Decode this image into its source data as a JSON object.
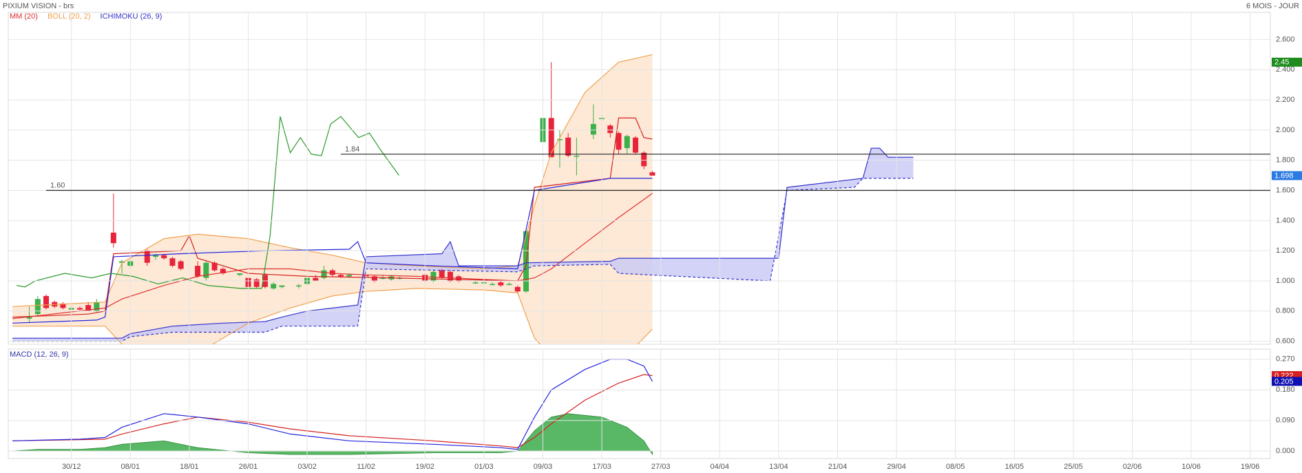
{
  "chart_data": [
    {
      "type": "candlestick",
      "title": "PIXIUM VISION - brs",
      "subtitle": "6 MOIS - JOUR",
      "xlim": [
        -0.5,
        149.4
      ],
      "ylim": [
        0.58,
        2.78
      ],
      "yticks": [
        {
          "value": 0.6,
          "label": "0.600"
        },
        {
          "value": 0.8,
          "label": "0.800"
        },
        {
          "value": 1.0,
          "label": "1.000"
        },
        {
          "value": 1.2,
          "label": "1.200"
        },
        {
          "value": 1.4,
          "label": "1.400"
        },
        {
          "value": 1.6,
          "label": "1.600"
        },
        {
          "value": 1.8,
          "label": "1.800"
        },
        {
          "value": 2.0,
          "label": "2.000"
        },
        {
          "value": 2.2,
          "label": "2.200"
        },
        {
          "value": 2.4,
          "label": "2.400"
        },
        {
          "value": 2.6,
          "label": "2.600"
        }
      ],
      "grid": true,
      "up_color": "#3cb04a",
      "down_color": "#e8243a",
      "x": [
        2,
        3,
        4,
        5,
        6,
        7,
        8,
        9,
        10,
        12,
        13,
        14,
        16,
        17,
        18,
        19,
        20,
        22,
        23,
        24,
        25,
        27,
        28,
        29,
        30,
        31,
        32,
        34,
        35,
        36,
        37,
        38,
        39,
        40,
        42,
        43,
        44,
        45,
        46,
        49,
        50,
        51,
        52,
        53,
        55,
        56,
        57,
        58,
        59,
        60,
        61,
        63,
        64,
        65,
        66,
        67,
        69,
        70,
        71,
        72,
        73,
        74,
        75,
        76
      ],
      "open": [
        0.75,
        0.78,
        0.9,
        0.86,
        0.85,
        0.81,
        0.82,
        0.84,
        0.8,
        1.32,
        1.12,
        1.1,
        1.2,
        1.16,
        1.17,
        1.15,
        1.13,
        1.1,
        1.02,
        1.12,
        1.08,
        1.04,
        1.02,
        1.01,
        1.04,
        0.95,
        0.96,
        0.97,
        0.98,
        1.02,
        1.02,
        1.07,
        1.04,
        1.03,
        1.04,
        1.03,
        1.02,
        1.01,
        1.02,
        1.04,
        1.0,
        1.07,
        1.06,
        1.03,
        0.99,
        0.99,
        0.98,
        0.99,
        0.98,
        0.96,
        0.93,
        1.92,
        2.08,
        1.94,
        1.95,
        1.83,
        1.97,
        2.08,
        2.03,
        1.98,
        1.88,
        1.95,
        1.85,
        1.72
      ],
      "high": [
        0.83,
        0.9,
        0.91,
        0.87,
        0.86,
        0.83,
        0.83,
        0.86,
        0.88,
        1.58,
        1.14,
        1.16,
        1.21,
        1.18,
        1.18,
        1.16,
        1.14,
        1.13,
        1.13,
        1.13,
        1.09,
        1.05,
        1.03,
        1.02,
        1.05,
        0.99,
        0.97,
        0.98,
        1.03,
        1.04,
        1.1,
        1.08,
        1.05,
        1.05,
        1.05,
        1.04,
        1.04,
        1.04,
        1.03,
        1.05,
        1.07,
        1.08,
        1.07,
        1.04,
        1.0,
        1.0,
        0.99,
        1.0,
        0.99,
        0.97,
        1.33,
        2.37,
        2.45,
        2.0,
        1.98,
        1.95,
        2.17,
        2.1,
        2.04,
        1.99,
        1.97,
        1.96,
        1.86,
        1.73
      ],
      "low": [
        0.72,
        0.77,
        0.81,
        0.82,
        0.81,
        0.8,
        0.8,
        0.8,
        0.79,
        1.22,
        1.05,
        1.08,
        1.1,
        1.14,
        1.14,
        1.09,
        1.07,
        1.02,
        1.0,
        1.06,
        1.04,
        1.03,
        0.95,
        0.95,
        0.95,
        0.94,
        0.95,
        0.95,
        0.97,
        1.0,
        1.01,
        1.03,
        1.02,
        1.02,
        1.02,
        0.99,
        1.01,
        1.0,
        1.01,
        0.99,
        0.99,
        1.01,
        0.99,
        0.99,
        0.98,
        0.98,
        0.97,
        0.96,
        0.97,
        0.92,
        0.92,
        1.82,
        1.82,
        1.75,
        1.82,
        1.7,
        1.94,
        2.06,
        1.95,
        1.84,
        1.84,
        1.84,
        1.74,
        1.7
      ],
      "close": [
        0.76,
        0.88,
        0.82,
        0.83,
        0.82,
        0.82,
        0.81,
        0.8,
        0.86,
        1.25,
        1.13,
        1.13,
        1.12,
        1.17,
        1.15,
        1.1,
        1.08,
        1.03,
        1.12,
        1.07,
        1.05,
        1.05,
        0.96,
        0.96,
        0.96,
        0.98,
        0.97,
        0.97,
        1.02,
        1.0,
        1.07,
        1.04,
        1.03,
        1.04,
        1.03,
        1.0,
        1.02,
        1.03,
        1.02,
        1.0,
        1.06,
        1.02,
        1.0,
        1.0,
        0.99,
        0.99,
        0.98,
        0.97,
        0.98,
        0.93,
        1.33,
        2.08,
        1.82,
        1.94,
        1.83,
        1.83,
        2.04,
        2.08,
        1.98,
        1.87,
        1.96,
        1.85,
        1.76,
        1.698
      ],
      "overlays": [
        {
          "name": "MM (20)",
          "color": "#e03030",
          "lines": [
            {
              "color": "#e03030",
              "x": [
                0,
                11,
                13,
                18,
                22,
                28,
                33,
                38,
                42,
                48,
                56,
                60,
                62,
                64,
                68,
                72,
                76
              ],
              "values": [
                0.75,
                0.82,
                0.88,
                0.97,
                1.03,
                1.08,
                1.08,
                1.05,
                1.04,
                1.03,
                1.01,
                1.0,
                1.02,
                1.08,
                1.25,
                1.42,
                1.58
              ]
            }
          ]
        },
        {
          "name": "BOLL (20, 2)",
          "color": "#f0a050",
          "fill": "#fde3cc",
          "fill_between": [
            0,
            1
          ],
          "lines": [
            {
              "color": "#f0a050",
              "x": [
                0,
                11,
                13,
                18,
                22,
                28,
                33,
                38,
                42,
                48,
                56,
                60,
                62,
                64,
                68,
                72,
                76
              ],
              "values": [
                0.83,
                0.86,
                1.12,
                1.28,
                1.31,
                1.28,
                1.22,
                1.17,
                1.12,
                1.1,
                1.08,
                1.1,
                1.5,
                1.85,
                2.25,
                2.45,
                2.5
              ]
            },
            {
              "color": "#f0a050",
              "x": [
                0,
                11,
                13,
                18,
                22,
                28,
                33,
                38,
                42,
                48,
                56,
                60,
                62,
                64,
                68,
                72,
                76
              ],
              "values": [
                0.7,
                0.7,
                0.58,
                0.5,
                0.52,
                0.72,
                0.82,
                0.9,
                0.93,
                0.95,
                0.94,
                0.92,
                0.62,
                0.5,
                0.45,
                0.45,
                0.68
              ]
            }
          ]
        },
        {
          "name": "ICHIMOKU (26, 9)",
          "color": "#3333cc",
          "fill": "#c8c8f5",
          "fill_between": [
            3,
            4
          ],
          "lines": [
            {
              "color": "#d42020",
              "x": [
                0,
                9,
                11,
                12,
                20,
                21,
                22,
                28,
                35,
                45,
                60,
                61,
                62,
                71,
                72,
                74,
                75,
                76
              ],
              "values": [
                0.76,
                0.78,
                0.8,
                1.18,
                1.2,
                1.3,
                1.15,
                1.05,
                1.03,
                1.02,
                1.0,
                1.1,
                1.62,
                1.68,
                2.08,
                2.08,
                1.95,
                1.94
              ]
            },
            {
              "color": "#2222dd",
              "x": [
                0,
                10,
                11,
                12,
                20,
                30,
                40,
                41,
                42,
                50,
                60,
                62,
                71,
                76
              ],
              "values": [
                0.72,
                0.74,
                0.76,
                1.16,
                1.18,
                1.2,
                1.21,
                1.26,
                1.12,
                1.1,
                1.08,
                1.6,
                1.68,
                1.68
              ]
            },
            {
              "color": "#2a9a2a",
              "x": [
                0.5,
                1.5,
                2.7,
                6.2,
                9.4,
                11.7,
                14.3,
                17.3,
                20.2,
                23.2,
                27.1,
                29.6,
                30.6,
                31.8,
                33,
                34.2,
                35.5,
                36.7,
                37.8,
                39,
                41.1,
                42.4,
                43.7,
                45.9
              ],
              "values": [
                0.97,
                0.96,
                1.0,
                1.05,
                1.02,
                1.05,
                1.03,
                0.98,
                1.02,
                0.97,
                0.95,
                0.95,
                1.3,
                2.09,
                1.85,
                1.95,
                1.84,
                1.83,
                2.04,
                2.09,
                1.95,
                1.98,
                1.87,
                1.7
              ]
            },
            {
              "color": "#3333cc",
              "x": [
                0,
                13,
                14,
                19,
                25,
                30,
                32,
                35,
                38,
                41,
                42,
                51,
                52,
                53,
                60,
                61,
                71,
                72,
                91,
                92,
                101,
                102,
                103,
                104,
                107
              ],
              "values": [
                0.62,
                0.62,
                0.65,
                0.7,
                0.72,
                0.73,
                0.76,
                0.8,
                0.82,
                0.84,
                1.16,
                1.18,
                1.26,
                1.1,
                1.1,
                1.12,
                1.13,
                1.15,
                1.15,
                1.62,
                1.68,
                1.88,
                1.88,
                1.82,
                1.82
              ]
            },
            {
              "color": "#3333cc",
              "dash": true,
              "x": [
                0,
                13,
                14,
                19,
                30,
                32,
                41,
                42,
                60,
                62,
                71,
                72,
                90,
                92,
                100,
                101,
                107
              ],
              "values": [
                0.6,
                0.6,
                0.63,
                0.66,
                0.66,
                0.7,
                0.7,
                1.08,
                1.06,
                1.1,
                1.11,
                1.05,
                1.0,
                1.6,
                1.62,
                1.68,
                1.68
              ]
            }
          ]
        }
      ],
      "hlines": [
        {
          "value": 1.84,
          "label": "1.84",
          "from": 39
        },
        {
          "value": 1.6,
          "label": "1.60",
          "from": 4
        }
      ],
      "last_values": [
        {
          "value": 2.45,
          "color": "#1e8c1e"
        },
        {
          "value": 1.698,
          "color": "#2a7ae2"
        }
      ]
    },
    {
      "type": "line",
      "title": "MACD (12, 26, 9)",
      "xlim": [
        -0.5,
        149.4
      ],
      "ylim": [
        -0.022,
        0.3
      ],
      "xticks": [
        {
          "value": 7,
          "label": "30/12"
        },
        {
          "value": 14,
          "label": "08/01"
        },
        {
          "value": 21,
          "label": "18/01"
        },
        {
          "value": 28,
          "label": "26/01"
        },
        {
          "value": 35,
          "label": "03/02"
        },
        {
          "value": 42,
          "label": "11/02"
        },
        {
          "value": 49,
          "label": "19/02"
        },
        {
          "value": 56,
          "label": "01/03"
        },
        {
          "value": 63,
          "label": "09/03"
        },
        {
          "value": 70,
          "label": "17/03"
        },
        {
          "value": 77,
          "label": "27/03"
        },
        {
          "value": 84,
          "label": "04/04"
        },
        {
          "value": 91,
          "label": "13/04"
        },
        {
          "value": 98,
          "label": "21/04"
        },
        {
          "value": 105,
          "label": "29/04"
        },
        {
          "value": 112,
          "label": "08/05"
        },
        {
          "value": 119,
          "label": "16/05"
        },
        {
          "value": 126,
          "label": "25/05"
        },
        {
          "value": 133,
          "label": "02/06"
        },
        {
          "value": 140,
          "label": "10/06"
        },
        {
          "value": 147,
          "label": "19/06"
        }
      ],
      "yticks": [
        {
          "value": 0,
          "label": "0.000"
        },
        {
          "value": 0.09,
          "label": "0.090"
        },
        {
          "value": 0.18,
          "label": "0.180"
        },
        {
          "value": 0.27,
          "label": "0.270"
        }
      ],
      "grid": true,
      "series": [
        {
          "color": "#3cab4a",
          "style": "area",
          "x": [
            0,
            3,
            8,
            11,
            13,
            18,
            22,
            26,
            28,
            33,
            40,
            50,
            58,
            60,
            62,
            64,
            66,
            70,
            73,
            75,
            76
          ],
          "values": [
            0,
            0.005,
            0.005,
            0.01,
            0.02,
            0.03,
            0.01,
            0,
            -0.005,
            -0.01,
            -0.01,
            -0.005,
            -0.005,
            0,
            0.06,
            0.1,
            0.11,
            0.1,
            0.07,
            0.03,
            -0.01
          ]
        },
        {
          "color": "#d42020",
          "x": [
            0,
            11,
            13,
            18,
            22,
            28,
            33,
            40,
            50,
            58,
            60,
            62,
            64,
            68,
            72,
            75,
            76
          ],
          "values": [
            0.03,
            0.035,
            0.05,
            0.08,
            0.1,
            0.085,
            0.065,
            0.045,
            0.03,
            0.015,
            0.01,
            0.04,
            0.08,
            0.15,
            0.2,
            0.225,
            0.222
          ]
        },
        {
          "color": "#2222dd",
          "x": [
            0,
            8,
            11,
            13,
            18,
            22,
            28,
            33,
            40,
            50,
            58,
            60,
            62,
            64,
            68,
            71,
            73,
            75,
            76
          ],
          "values": [
            0.03,
            0.035,
            0.04,
            0.07,
            0.11,
            0.1,
            0.08,
            0.05,
            0.03,
            0.02,
            0.01,
            0.005,
            0.1,
            0.18,
            0.24,
            0.27,
            0.27,
            0.25,
            0.205
          ]
        }
      ],
      "last_values": [
        {
          "value": 0.222,
          "color": "#d42020"
        },
        {
          "value": 0.205,
          "color": "#1010b0"
        }
      ]
    }
  ]
}
